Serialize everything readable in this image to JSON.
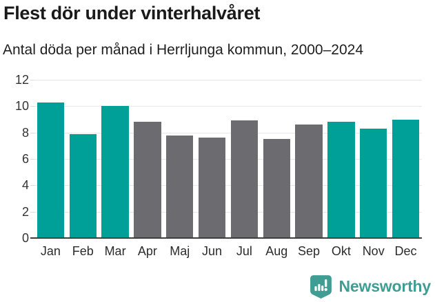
{
  "header": {
    "title": "Flest dör under vinterhalvåret",
    "subtitle": "Antal döda per månad i Herrljunga kommun, 2000–2024"
  },
  "chart_data": {
    "type": "bar",
    "title": "Flest dör under vinterhalvåret",
    "subtitle": "Antal döda per månad i Herrljunga kommun, 2000–2024",
    "categories": [
      "Jan",
      "Feb",
      "Mar",
      "Apr",
      "Maj",
      "Jun",
      "Jul",
      "Aug",
      "Sep",
      "Okt",
      "Nov",
      "Dec"
    ],
    "values": [
      10.3,
      7.9,
      10.0,
      8.8,
      7.8,
      7.6,
      8.9,
      7.5,
      8.6,
      8.8,
      8.3,
      9.0
    ],
    "bar_groups": [
      "winter",
      "winter",
      "winter",
      "summer",
      "summer",
      "summer",
      "summer",
      "summer",
      "summer",
      "winter",
      "winter",
      "winter"
    ],
    "xlabel": "",
    "ylabel": "",
    "ylim": [
      0,
      12
    ],
    "yticks": [
      0,
      2,
      4,
      6,
      8,
      10,
      12
    ],
    "grid": true,
    "legend": false,
    "colors": {
      "winter": "#00a099",
      "summer": "#6c6c70",
      "gridline": "#e7e7e7",
      "axis_line": "#3d3d3d",
      "tick_text": "#333333"
    }
  },
  "footer": {
    "brand": "Newsworthy",
    "brand_color": "#3f9d93"
  }
}
